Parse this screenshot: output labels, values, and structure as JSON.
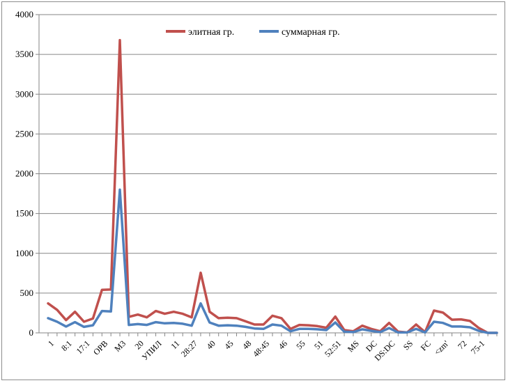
{
  "chart_data": {
    "type": "line",
    "title": "",
    "xlabel": "",
    "ylabel": "",
    "ylim": [
      0,
      4000
    ],
    "yticks": [
      0,
      500,
      1000,
      1500,
      2000,
      2500,
      3000,
      3500,
      4000
    ],
    "grid": "horizontal",
    "legend_position": "top-center",
    "x_count": 51,
    "x_tick_labels": [
      {
        "index": 0,
        "label": "1"
      },
      {
        "index": 2,
        "label": "8:1"
      },
      {
        "index": 4,
        "label": "17:1"
      },
      {
        "index": 6,
        "label": "OPB"
      },
      {
        "index": 8,
        "label": "M3"
      },
      {
        "index": 10,
        "label": "20"
      },
      {
        "index": 12,
        "label": "УПИЛ"
      },
      {
        "index": 14,
        "label": "11"
      },
      {
        "index": 16,
        "label": "28:27"
      },
      {
        "index": 18,
        "label": "40"
      },
      {
        "index": 20,
        "label": "45"
      },
      {
        "index": 22,
        "label": "48"
      },
      {
        "index": 24,
        "label": "48:45"
      },
      {
        "index": 26,
        "label": "46"
      },
      {
        "index": 28,
        "label": "55"
      },
      {
        "index": 30,
        "label": "51"
      },
      {
        "index": 32,
        "label": "52:51"
      },
      {
        "index": 34,
        "label": "MS"
      },
      {
        "index": 36,
        "label": "DC"
      },
      {
        "index": 38,
        "label": "DS:DC"
      },
      {
        "index": 40,
        "label": "SS"
      },
      {
        "index": 42,
        "label": "FC"
      },
      {
        "index": 44,
        "label": "<zm'"
      },
      {
        "index": 46,
        "label": "72"
      },
      {
        "index": 48,
        "label": "75-1"
      }
    ],
    "series": [
      {
        "name": "элитная гр.",
        "color": "#c0504d",
        "values": [
          370,
          290,
          160,
          265,
          140,
          180,
          540,
          545,
          3680,
          200,
          230,
          195,
          275,
          240,
          265,
          240,
          195,
          755,
          265,
          185,
          190,
          185,
          145,
          105,
          105,
          215,
          185,
          50,
          100,
          95,
          85,
          65,
          205,
          35,
          20,
          90,
          50,
          20,
          125,
          15,
          5,
          105,
          10,
          280,
          255,
          165,
          170,
          150,
          60,
          0,
          0
        ]
      },
      {
        "name": "суммарная гр.",
        "color": "#4f81bd",
        "values": [
          185,
          140,
          80,
          135,
          75,
          95,
          275,
          270,
          1800,
          100,
          110,
          100,
          135,
          120,
          125,
          115,
          90,
          370,
          130,
          90,
          95,
          90,
          75,
          55,
          50,
          105,
          90,
          20,
          50,
          50,
          45,
          35,
          130,
          15,
          10,
          45,
          25,
          10,
          60,
          5,
          5,
          50,
          5,
          140,
          125,
          80,
          80,
          70,
          25,
          0,
          0
        ]
      }
    ]
  }
}
